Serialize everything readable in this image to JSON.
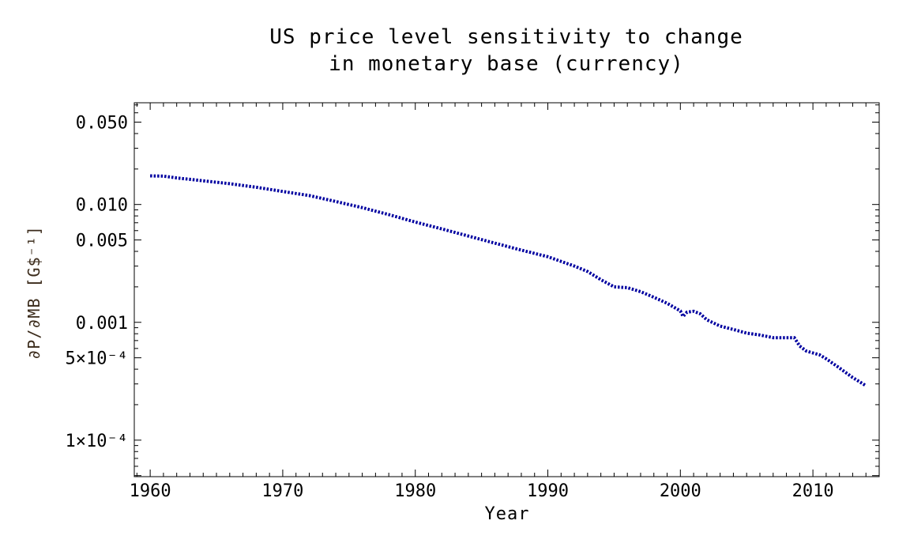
{
  "chart_data": {
    "type": "line",
    "title_lines": [
      "US price level sensitivity to change",
      "in monetary base (currency)"
    ],
    "xlabel": "Year",
    "ylabel": "∂P/∂MB [G$⁻¹]",
    "yscale": "log",
    "xlim": [
      1958.8,
      2015
    ],
    "ylim": [
      4.9e-05,
      0.073
    ],
    "x_ticks": [
      1960,
      1970,
      1980,
      1990,
      2000,
      2010
    ],
    "x_tick_labels": [
      "1960",
      "1970",
      "1980",
      "1990",
      "2000",
      "2010"
    ],
    "y_ticks": [
      0.05,
      0.01,
      0.005,
      0.001,
      0.0005,
      0.0001
    ],
    "y_tick_labels": [
      "0.050",
      "0.010",
      "0.005",
      "0.001",
      "5×10⁻⁴",
      "1×10⁻⁴"
    ],
    "series": [
      {
        "name": "dP/dMB",
        "color": "#0000a0",
        "style": "dotted",
        "x": [
          1960,
          1961,
          1962,
          1964,
          1966,
          1968,
          1970,
          1972,
          1974,
          1976,
          1978,
          1980,
          1982,
          1984,
          1986,
          1988,
          1990,
          1992,
          1993,
          1994,
          1995,
          1996,
          1997,
          1998,
          1999,
          2000,
          2000.2,
          2000.5,
          2001,
          2001.5,
          2002,
          2003,
          2004,
          2005,
          2006,
          2007,
          2008,
          2008.6,
          2009,
          2009.5,
          2010,
          2010.5,
          2011,
          2012,
          2013,
          2014
        ],
        "y": [
          0.0175,
          0.0174,
          0.0168,
          0.0159,
          0.015,
          0.014,
          0.0129,
          0.0119,
          0.0106,
          0.0094,
          0.0082,
          0.0071,
          0.0062,
          0.0054,
          0.0047,
          0.0041,
          0.0036,
          0.003,
          0.0027,
          0.0023,
          0.002,
          0.00197,
          0.00182,
          0.00163,
          0.00145,
          0.00125,
          0.00112,
          0.00122,
          0.00124,
          0.00118,
          0.00105,
          0.00093,
          0.00087,
          0.00081,
          0.00078,
          0.00074,
          0.00074,
          0.00074,
          0.00063,
          0.00057,
          0.00055,
          0.00053,
          0.00049,
          0.00041,
          0.00034,
          0.00029
        ]
      }
    ]
  }
}
